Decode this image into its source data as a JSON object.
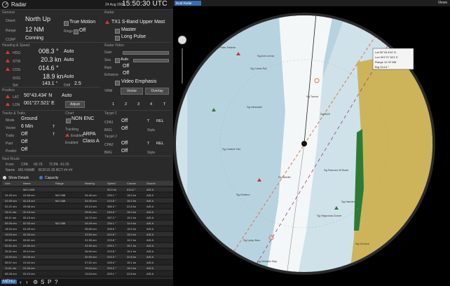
{
  "window": {
    "title": "Radar",
    "date": "24 Aug 2009",
    "time": "15:50:30 UTC"
  },
  "general": {
    "section": "General",
    "orient_label": "Orient",
    "orient_value": "North Up",
    "range_label": "Range",
    "range_value": "12 NM",
    "ccrp_label": "CCRP",
    "ccrp_value": "Conning",
    "true_motion": "True Motion",
    "rings_label": "Rings",
    "rings_value": "Off"
  },
  "radar": {
    "section": "Radar",
    "transceiver": "TX1 S-Band Upper Mast",
    "master": "Master",
    "pulse": "Long Pulse"
  },
  "heading": {
    "section": "Heading & Speed",
    "hdg_label": "HDG",
    "hdg_value": "008.3 °",
    "hdg_mode": "Auto",
    "stw_label": "STW",
    "stw_value": "20.3 kn",
    "stw_mode": "Auto",
    "cog_label": "COG",
    "cog_value": "014.6 °",
    "sog_label": "SOG",
    "sog_value": "18.9 kn",
    "sog_mode": "Auto",
    "set_label": "Set",
    "set_value": "143.1 °",
    "drift_label": "Drift",
    "drift_value": "2.5"
  },
  "video": {
    "section": "Radar Video",
    "gain": "Gain",
    "sea": "Sea",
    "sea_auto": "Auto",
    "rain": "Rain",
    "rain_value": "Off",
    "enhance": "Enhance",
    "enhance_value": "Off",
    "video_emphasis": "Video Emphasis",
    "vrm": "VRM",
    "vector_btn": "Vector",
    "overlay_btn": "Overlay",
    "ebl": [
      "1",
      "2",
      "3",
      "4",
      "T"
    ]
  },
  "position": {
    "section": "Position",
    "lat_label": "LAT",
    "lat_value": "50°43.434' N",
    "lat_mode": "Auto",
    "lon_label": "LON",
    "lon_value": "001°27.521' E",
    "adjust": "Adjust"
  },
  "tracks": {
    "section": "Tracks & Trails",
    "mode_label": "Mode",
    "mode_value": "Ground",
    "vector_label": "Vector",
    "vector_value": "6 Min",
    "vector_t": "T",
    "trails_label": "Trails",
    "trails_value": "Off",
    "trails_t": "T",
    "past_label": "Past",
    "past_value": "Off",
    "pred_label": "Predict",
    "pred_value": "Off"
  },
  "chart": {
    "section": "Chart",
    "nonenc": "NON ENC",
    "tracking_label": "Tracking",
    "arpa": "ARPA",
    "enabled": "Enabled",
    "class_label": "Class A"
  },
  "targets": {
    "section": "Target 1",
    "cpa1_label": "CPA1",
    "cpa1_value": "Off",
    "t1": "T",
    "rel1": "REL",
    "cpa2_label": "BRG",
    "cpa2_value": "Off",
    "style1": "Style",
    "section2": "Target 2",
    "cpa3_label": "CPA2",
    "cpa3_value": "Off",
    "t2": "T",
    "rel2": "REL",
    "cpa4_label": "BRG",
    "cpa4_value": "Off",
    "style2": "Style"
  },
  "route": {
    "section": "Next Route",
    "from_label": "From",
    "from_value": "CPA",
    "cpa_val": "00.79",
    "tcpa": "TCPA",
    "tcpa_val": "41:25",
    "name_label": "Name",
    "name_value": "MS HAMB",
    "bcr_label": "BCR",
    "bcr_val": "15.35",
    "bct_label": "BCT",
    "bct_val": "##:##"
  },
  "details": {
    "show": "Show Details",
    "capacity": "Capacity"
  },
  "table": {
    "headers": [
      "Line",
      "Name",
      "Range",
      "Bearing",
      "Speed",
      "Course",
      "Source"
    ],
    "rows": [
      [
        "",
        "MO LINK",
        "",
        "",
        "00.0 kn",
        "014.5 °",
        "AIS A"
      ],
      [
        "24.45 nm",
        "02.56 nm",
        "MO 088",
        "34.46 nm",
        "225.1 °",
        "15.0 kn",
        "AIS A"
      ],
      [
        "20.39 nm",
        "02.15 nm",
        "MO 088",
        "24.05 nm",
        "213.8 °",
        "15.2 kn",
        "AIS A"
      ],
      [
        "02.21 nm",
        "09.38 nm",
        "",
        "43.14 nm",
        "356.3 °",
        "22.8 kn",
        "AIS A"
      ],
      [
        "15.11 nm",
        "20.19 nm",
        "",
        "29.61 nm",
        "043.6 °",
        "15.0 kn",
        "AIS A"
      ],
      [
        "06.11 nm",
        "00.13 nm",
        "",
        "16.72 nm",
        "057.2 °",
        "15.1 kn",
        "AIS A"
      ],
      [
        "05.06 nm",
        "02.93 nm",
        "MO 086",
        "24.09 nm",
        "234.1 °",
        "14.9 kn",
        "AIS A"
      ],
      [
        "18.34 nm",
        "01.29 nm",
        "",
        "28.89 nm",
        "205.5 °",
        "15.0 kn",
        "AIS A"
      ],
      [
        "19.00 nm",
        "02.05 nm",
        "",
        "23.50 nm",
        "010.8 °",
        "15.0 kn",
        "AIS A"
      ],
      [
        "02.54 nm",
        "00.61 nm",
        "",
        "21.35 nm",
        "223.8 °",
        "15.2 kn",
        "AIS A"
      ],
      [
        "20.51 nm",
        "04.56 nm",
        "",
        "24.90 nm",
        "209.1 °",
        "15.1 kn",
        "AIS A"
      ],
      [
        "25.51 nm",
        "00.14 nm",
        "",
        "26.90 nm",
        "223.8 °",
        "15.1 kn",
        "AIS A"
      ],
      [
        "15.93 nm",
        "00.09 nm",
        "",
        "20.93 nm",
        "223.3 °",
        "22.8 kn",
        "AIS A"
      ],
      [
        "05.57 nm",
        "21.54 nm",
        "",
        "07.51 nm",
        "225.9 °",
        "15.1 kn",
        "AIS A"
      ],
      [
        "11.61 nm",
        "03.35 nm",
        "",
        "13.04 nm",
        "203.2 °",
        "15.0 kn",
        "AIS A"
      ],
      [
        "08.28 nm",
        "02.19 nm",
        "",
        "13.04 nm",
        "203.1 °",
        "22.8 kn",
        "AIS A"
      ]
    ]
  },
  "taskbar": {
    "menu": "MENU",
    "s": "S",
    "p": "P",
    "q": "?"
  },
  "map": {
    "tab": "Dual Radar",
    "views": "Views",
    "info": [
      "Lat   50°43.434' N",
      "Lon   001°27.521' E",
      "Range 12.00 NM",
      "Brg   014.6 °"
    ],
    "labels": [
      "Sg Peter Helene",
      "Sg Ant Lonna",
      "Sg Costa Pal",
      "Sg Tomar",
      "Sg BCE",
      "Sg Heinsath",
      "Sg Cellent Ost",
      "Sg Rannen W Bush",
      "Sg Marilin",
      "Sg Kinteno",
      "Sg Hamfer",
      "Sg Hippoclac Dover",
      "Sg Ondove",
      "Sg Lyrsp Ban",
      "Sg Sehafer Bay"
    ],
    "colors": {
      "sea": "#cfe2ea",
      "deep": "#a9c9d8",
      "land": "#cdb45a",
      "route": "#e07050",
      "ebl": "#9a3c7a"
    }
  }
}
